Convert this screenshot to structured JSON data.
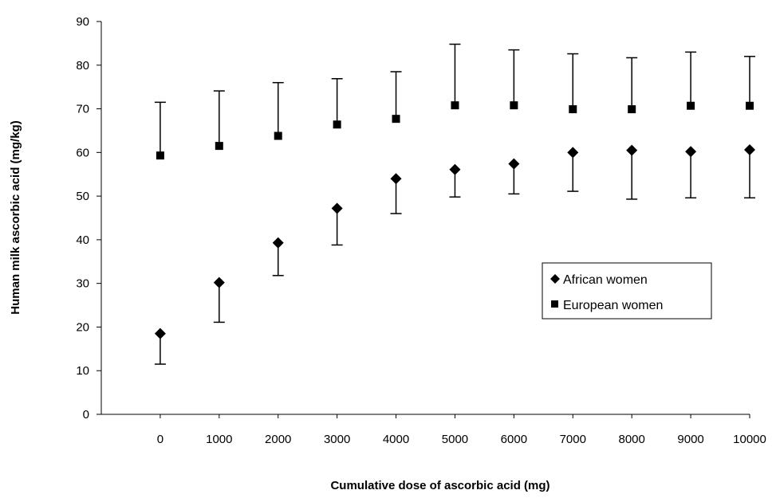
{
  "chart_data": {
    "type": "scatter",
    "title": "",
    "xlabel": "Cumulative dose of ascorbic acid (mg)",
    "ylabel": "Human milk ascorbic acid (mg/kg)",
    "x_ticks": [
      "0",
      "1000",
      "2000",
      "3000",
      "4000",
      "5000",
      "6000",
      "7000",
      "8000",
      "9000",
      "10000"
    ],
    "y_ticks": [
      "0",
      "10",
      "20",
      "30",
      "40",
      "50",
      "60",
      "70",
      "80",
      "90"
    ],
    "xlim": [
      -1000,
      10000
    ],
    "ylim": [
      0,
      90
    ],
    "grid": false,
    "legend_position": "right",
    "x": [
      0,
      1000,
      2000,
      3000,
      4000,
      5000,
      6000,
      7000,
      8000,
      9000,
      10000
    ],
    "series": [
      {
        "name": "African women",
        "marker": "diamond",
        "values": [
          18.5,
          30.2,
          39.3,
          47.2,
          54.0,
          56.1,
          57.4,
          60.0,
          60.5,
          60.2,
          60.6
        ],
        "error_lower": [
          11.5,
          21.1,
          31.8,
          38.8,
          46.0,
          49.8,
          50.5,
          51.1,
          49.3,
          49.6,
          49.6
        ],
        "error_upper": null
      },
      {
        "name": "European women",
        "marker": "square",
        "values": [
          59.3,
          61.5,
          63.8,
          66.4,
          67.7,
          70.8,
          70.8,
          69.9,
          69.9,
          70.7,
          70.7
        ],
        "error_lower": null,
        "error_upper": [
          71.5,
          74.1,
          76.0,
          76.9,
          78.5,
          84.8,
          83.5,
          82.6,
          81.7,
          83.0,
          82.0
        ]
      }
    ],
    "colors": {
      "marker": "#000000",
      "axis": "#000000",
      "background": "#ffffff"
    }
  }
}
